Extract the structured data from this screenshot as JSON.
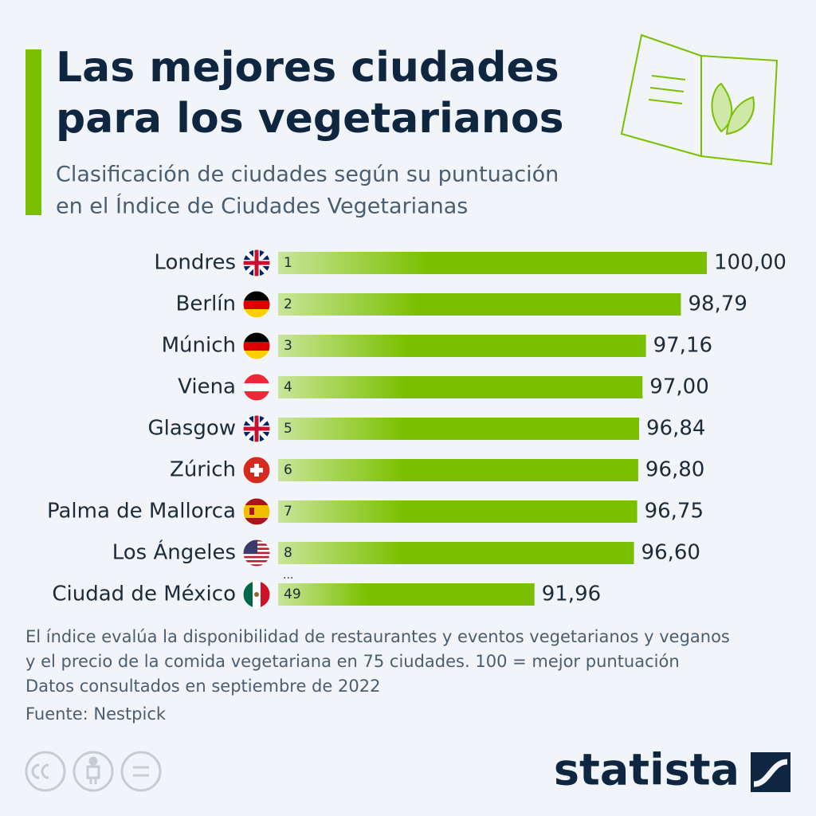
{
  "chart_data": {
    "type": "bar",
    "orientation": "horizontal",
    "title_lines": [
      "Las mejores ciudades",
      "para los vegetarianos"
    ],
    "subtitle_lines": [
      "Clasificación de ciudades según su puntuación",
      "en el Índice de Ciudades Vegetarianas"
    ],
    "categories": [
      "Londres",
      "Berlín",
      "Múnich",
      "Viena",
      "Glasgow",
      "Zúrich",
      "Palma de Mallorca",
      "Los Ángeles",
      "Ciudad de México"
    ],
    "ranks": [
      1,
      2,
      3,
      4,
      5,
      6,
      7,
      8,
      49
    ],
    "values": [
      100,
      98.79,
      97.16,
      97,
      96.84,
      96.8,
      96.75,
      96.6,
      91.96
    ],
    "value_labels": [
      "100,00",
      "98,79",
      "97,16",
      "97,00",
      "96,84",
      "96,80",
      "96,75",
      "96,60",
      "91,96"
    ],
    "ellipsis": "...",
    "color": "#7ac000",
    "xlim": [
      80,
      100
    ],
    "notes": [
      "El índice evalúa la disponibilidad de restaurantes y eventos vegetarianos y veganos",
      "y el precio de la comida vegetariana en 75 ciudades. 100 = mejor puntuación",
      "Datos consultados en septiembre de 2022"
    ],
    "source": "Fuente: Nestpick",
    "brand": "statista"
  }
}
